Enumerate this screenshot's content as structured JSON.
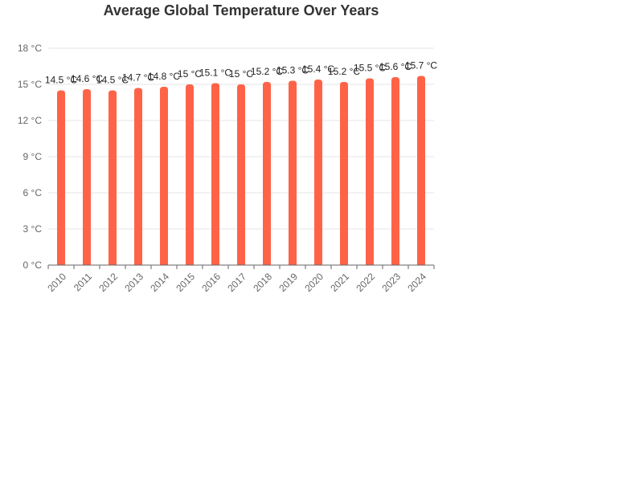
{
  "chart_data": {
    "type": "bar",
    "title": "Average Global Temperature Over Years",
    "xlabel": "",
    "ylabel": "",
    "unit": "°C",
    "categories": [
      "2010",
      "2011",
      "2012",
      "2013",
      "2014",
      "2015",
      "2016",
      "2017",
      "2018",
      "2019",
      "2020",
      "2021",
      "2022",
      "2023",
      "2024"
    ],
    "values": [
      14.5,
      14.6,
      14.5,
      14.7,
      14.8,
      15,
      15.1,
      15,
      15.2,
      15.3,
      15.4,
      15.2,
      15.5,
      15.6,
      15.7
    ],
    "value_labels": [
      "14.5 °C",
      "14.6 °C",
      "14.5 °C",
      "14.7 °C",
      "14.8 °C",
      "15 °C",
      "15.1 °C",
      "15 °C",
      "15.2 °C",
      "15.3 °C",
      "15.4 °C",
      "15.2 °C",
      "15.5 °C",
      "15.6 °C",
      "15.7 °C"
    ],
    "y_ticks": [
      0,
      3,
      6,
      9,
      12,
      15,
      18
    ],
    "y_tick_labels": [
      "0 °C",
      "3 °C",
      "6 °C",
      "9 °C",
      "12 °C",
      "15 °C",
      "18 °C"
    ],
    "ylim": [
      0,
      18
    ],
    "grid": true,
    "legend": "none",
    "colors": {
      "bar": "#ff6347",
      "grid": "#e6e6e6",
      "axis": "#666666"
    }
  }
}
